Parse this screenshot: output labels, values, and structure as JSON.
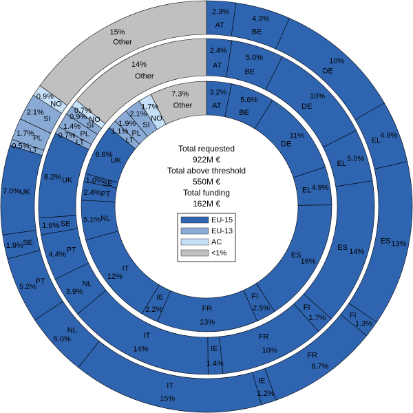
{
  "chart_data": {
    "type": "sunburst",
    "center_text": {
      "line1": "Total requested",
      "line2": "922M €",
      "line3": "Total above threshold",
      "line4": "550M €",
      "line5": "Total funding",
      "line6": "162M €"
    },
    "legend": [
      {
        "label": "EU-15",
        "color": "#2f64b0"
      },
      {
        "label": "EU-13",
        "color": "#8aaad6"
      },
      {
        "label": "AC",
        "color": "#c4dff6"
      },
      {
        "label": "<1%",
        "color": "#c0c0c0"
      }
    ],
    "colors": {
      "EU-15": "#2f64b0",
      "EU-13": "#8aaad6",
      "AC": "#c4dff6",
      "<1%": "#c0c0c0"
    },
    "rings": [
      {
        "name": "Total requested",
        "segments": [
          {
            "label": "AT",
            "pct_label": "2.3%",
            "value": 2.3,
            "group": "EU-15"
          },
          {
            "label": "BE",
            "pct_label": "4.3%",
            "value": 4.3,
            "group": "EU-15"
          },
          {
            "label": "DE",
            "pct_label": "10%",
            "value": 10,
            "group": "EU-15"
          },
          {
            "label": "EL",
            "pct_label": "4.9%",
            "value": 4.9,
            "group": "EU-15"
          },
          {
            "label": "ES",
            "pct_label": "13%",
            "value": 13,
            "group": "EU-15"
          },
          {
            "label": "FI",
            "pct_label": "1.3%",
            "value": 1.3,
            "group": "EU-15"
          },
          {
            "label": "FR",
            "pct_label": "8.7%",
            "value": 8.7,
            "group": "EU-15"
          },
          {
            "label": "IE",
            "pct_label": "1.2%",
            "value": 1.2,
            "group": "EU-15"
          },
          {
            "label": "IT",
            "pct_label": "15%",
            "value": 15,
            "group": "EU-15"
          },
          {
            "label": "NL",
            "pct_label": "5.0%",
            "value": 5.0,
            "group": "EU-15"
          },
          {
            "label": "PT",
            "pct_label": "5.2%",
            "value": 5.2,
            "group": "EU-15"
          },
          {
            "label": "SE",
            "pct_label": "1.9%",
            "value": 1.9,
            "group": "EU-15"
          },
          {
            "label": "UK",
            "pct_label": "7.0%",
            "value": 7.0,
            "group": "EU-15"
          },
          {
            "label": "LT",
            "pct_label": "0.5%",
            "value": 0.5,
            "group": "EU-13"
          },
          {
            "label": "PL",
            "pct_label": "1.7%",
            "value": 1.7,
            "group": "EU-13"
          },
          {
            "label": "SI",
            "pct_label": "2.1%",
            "value": 2.1,
            "group": "EU-13"
          },
          {
            "label": "NO",
            "pct_label": "0.9%",
            "value": 0.9,
            "group": "AC"
          },
          {
            "label": "Other",
            "pct_label": "15%",
            "value": 15,
            "group": "<1%"
          }
        ]
      },
      {
        "name": "Total above threshold",
        "segments": [
          {
            "label": "AT",
            "pct_label": "2.4%",
            "value": 2.4,
            "group": "EU-15"
          },
          {
            "label": "BE",
            "pct_label": "5.0%",
            "value": 5.0,
            "group": "EU-15"
          },
          {
            "label": "DE",
            "pct_label": "10%",
            "value": 10,
            "group": "EU-15"
          },
          {
            "label": "EL",
            "pct_label": "5.0%",
            "value": 5.0,
            "group": "EU-15"
          },
          {
            "label": "ES",
            "pct_label": "14%",
            "value": 14,
            "group": "EU-15"
          },
          {
            "label": "FI",
            "pct_label": "1.7%",
            "value": 1.7,
            "group": "EU-15"
          },
          {
            "label": "FR",
            "pct_label": "10%",
            "value": 10,
            "group": "EU-15"
          },
          {
            "label": "IE",
            "pct_label": "1.4%",
            "value": 1.4,
            "group": "EU-15"
          },
          {
            "label": "IT",
            "pct_label": "14%",
            "value": 14,
            "group": "EU-15"
          },
          {
            "label": "NL",
            "pct_label": "3.9%",
            "value": 3.9,
            "group": "EU-15"
          },
          {
            "label": "PT",
            "pct_label": "4.4%",
            "value": 4.4,
            "group": "EU-15"
          },
          {
            "label": "SE",
            "pct_label": "1.6%",
            "value": 1.6,
            "group": "EU-15"
          },
          {
            "label": "UK",
            "pct_label": "8.2%",
            "value": 8.2,
            "group": "EU-15"
          },
          {
            "label": "LT",
            "pct_label": "0.7%",
            "value": 0.7,
            "group": "EU-13"
          },
          {
            "label": "PL",
            "pct_label": "1.4%",
            "value": 1.4,
            "group": "EU-13"
          },
          {
            "label": "SI",
            "pct_label": "0.9%",
            "value": 0.9,
            "group": "EU-13"
          },
          {
            "label": "NO",
            "pct_label": "0.7%",
            "value": 0.7,
            "group": "AC"
          },
          {
            "label": "Other",
            "pct_label": "14%",
            "value": 14,
            "group": "<1%"
          }
        ]
      },
      {
        "name": "Total funding",
        "segments": [
          {
            "label": "AT",
            "pct_label": "3.2%",
            "value": 3.2,
            "group": "EU-15"
          },
          {
            "label": "BE",
            "pct_label": "5.6%",
            "value": 5.6,
            "group": "EU-15"
          },
          {
            "label": "DE",
            "pct_label": "11%",
            "value": 11,
            "group": "EU-15"
          },
          {
            "label": "EL",
            "pct_label": "4.9%",
            "value": 4.9,
            "group": "EU-15"
          },
          {
            "label": "ES",
            "pct_label": "16%",
            "value": 16,
            "group": "EU-15"
          },
          {
            "label": "FI",
            "pct_label": "2.5%",
            "value": 2.5,
            "group": "EU-15"
          },
          {
            "label": "FR",
            "pct_label": "13%",
            "value": 13,
            "group": "EU-15"
          },
          {
            "label": "IE",
            "pct_label": "2.2%",
            "value": 2.2,
            "group": "EU-15"
          },
          {
            "label": "IT",
            "pct_label": "12%",
            "value": 12,
            "group": "EU-15"
          },
          {
            "label": "NL",
            "pct_label": "5.1%",
            "value": 5.1,
            "group": "EU-15"
          },
          {
            "label": "PT",
            "pct_label": "2.4%",
            "value": 2.4,
            "group": "EU-15"
          },
          {
            "label": "SE",
            "pct_label": "1.0%",
            "value": 1.0,
            "group": "EU-15"
          },
          {
            "label": "UK",
            "pct_label": "6.6%",
            "value": 6.6,
            "group": "EU-15"
          },
          {
            "label": "LT",
            "pct_label": "1.1%",
            "value": 1.1,
            "group": "EU-13"
          },
          {
            "label": "PL",
            "pct_label": "1.9%",
            "value": 1.9,
            "group": "EU-13"
          },
          {
            "label": "SI",
            "pct_label": "2.1%",
            "value": 2.1,
            "group": "EU-13"
          },
          {
            "label": "NO",
            "pct_label": "1.7%",
            "value": 1.7,
            "group": "AC"
          },
          {
            "label": "Other",
            "pct_label": "7.3%",
            "value": 7.3,
            "group": "<1%"
          }
        ]
      }
    ]
  }
}
